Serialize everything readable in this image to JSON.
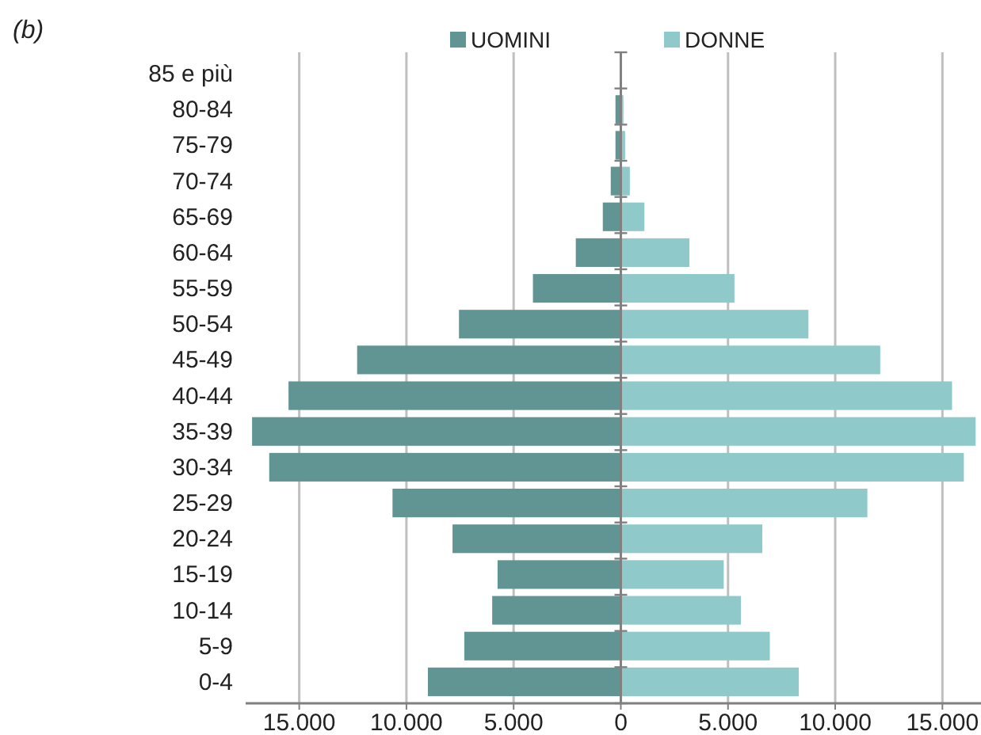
{
  "chart_data": {
    "type": "bar",
    "orientation": "horizontal",
    "title": "(b)",
    "categories": [
      "85 e più",
      "80-84",
      "75-79",
      "70-74",
      "65-69",
      "60-64",
      "55-59",
      "50-54",
      "45-49",
      "40-44",
      "35-39",
      "30-34",
      "25-29",
      "20-24",
      "15-19",
      "10-14",
      "5-9",
      "0-4"
    ],
    "series": [
      {
        "name": "UOMINI",
        "color": "#619594",
        "values": [
          0,
          -250,
          -250,
          -470,
          -840,
          -2100,
          -4100,
          -7550,
          -12300,
          -15500,
          -17200,
          -16400,
          -10650,
          -7850,
          -5750,
          -6000,
          -7300,
          -9000
        ]
      },
      {
        "name": "DONNE",
        "color": "#8fc9c9",
        "values": [
          0,
          120,
          200,
          420,
          1100,
          3200,
          5300,
          8750,
          12100,
          15450,
          16550,
          16000,
          11500,
          6600,
          4800,
          5600,
          6950,
          8300
        ]
      }
    ],
    "xlim": [
      -17500,
      16800
    ],
    "xticks": [
      {
        "value": -15000,
        "label": "15.000"
      },
      {
        "value": -10000,
        "label": "10.000"
      },
      {
        "value": -5000,
        "label": "5.000"
      },
      0,
      {
        "value": 5000,
        "label": "5.000"
      },
      {
        "value": 10000,
        "label": "10.000"
      },
      {
        "value": 15000,
        "label": "15.000"
      }
    ],
    "grid": "x",
    "legend": "top",
    "stacked": true
  }
}
